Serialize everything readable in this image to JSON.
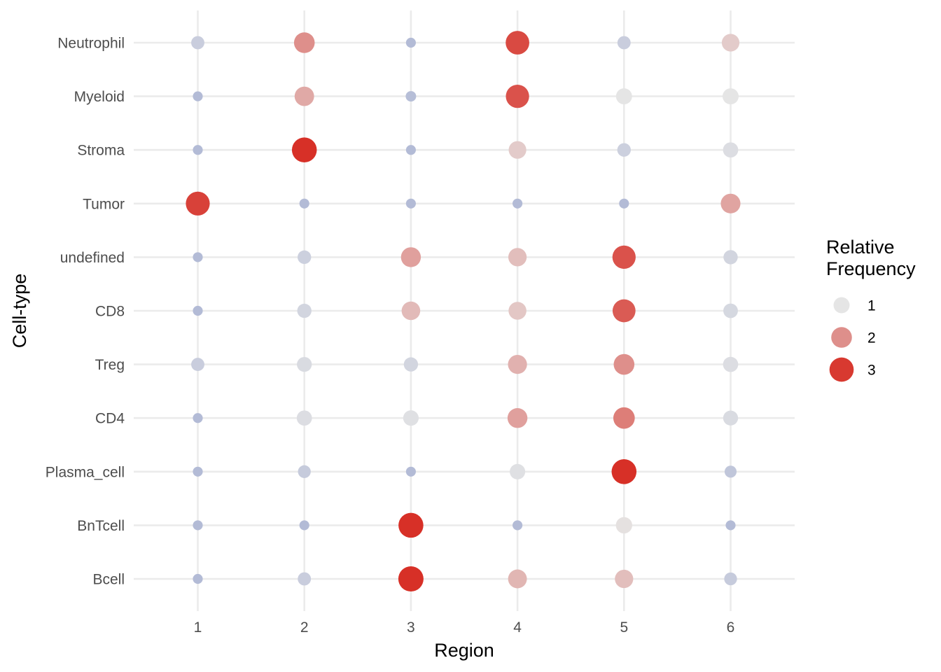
{
  "chart_data": {
    "type": "scatter",
    "subtype": "dot-matrix",
    "title": "",
    "xlabel": "Region",
    "ylabel": "Cell-type",
    "x_categories": [
      "1",
      "2",
      "3",
      "4",
      "5",
      "6"
    ],
    "y_categories": [
      "Neutrophil",
      "Myeloid",
      "Stroma",
      "Tumor",
      "undefined",
      "CD8",
      "Treg",
      "CD4",
      "Plasma_cell",
      "BnTcell",
      "Bcell"
    ],
    "legend": {
      "title_lines": [
        "Relative",
        "Frequency"
      ],
      "position": "right",
      "entries": [
        {
          "label": "1",
          "value": 1
        },
        {
          "label": "2",
          "value": 2
        },
        {
          "label": "3",
          "value": 3
        }
      ]
    },
    "grid": true,
    "color_scale": {
      "low": "#b3bbd6",
      "mid": "#e5e5e5",
      "high": "#d73027"
    },
    "values": {
      "Neutrophil": [
        0.55,
        2.0,
        0.2,
        2.8,
        0.55,
        1.3
      ],
      "Myeloid": [
        0.2,
        1.7,
        0.25,
        2.7,
        1.0,
        1.0
      ],
      "Stroma": [
        0.2,
        3.2,
        0.2,
        1.3,
        0.6,
        0.85
      ],
      "Tumor": [
        2.9,
        0.2,
        0.2,
        0.2,
        0.2,
        1.75
      ],
      "undefined": [
        0.2,
        0.6,
        1.8,
        1.45,
        2.7,
        0.7
      ],
      "CD8": [
        0.2,
        0.7,
        1.5,
        1.35,
        2.6,
        0.75
      ],
      "Treg": [
        0.55,
        0.8,
        0.7,
        1.6,
        2.0,
        0.85
      ],
      "CD4": [
        0.2,
        0.85,
        0.9,
        1.8,
        2.2,
        0.8
      ],
      "Plasma_cell": [
        0.2,
        0.5,
        0.2,
        0.9,
        3.2,
        0.4
      ],
      "BnTcell": [
        0.2,
        0.2,
        3.2,
        0.2,
        1.05,
        0.2
      ],
      "Bcell": [
        0.2,
        0.55,
        3.3,
        1.55,
        1.45,
        0.5
      ]
    }
  }
}
